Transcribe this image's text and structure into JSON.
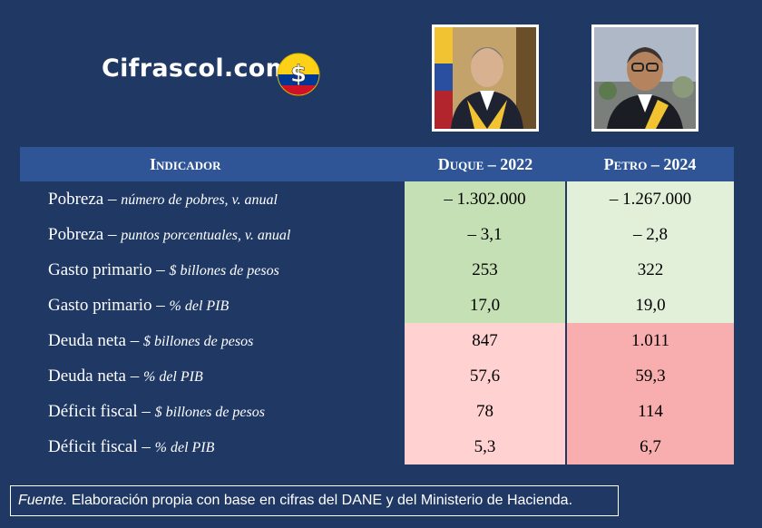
{
  "brand": {
    "name": "Cifrascol.com",
    "coin_symbol": "$",
    "flag_colors": [
      "#fcd116",
      "#003893",
      "#ce1126"
    ]
  },
  "photos": {
    "duque": "portrait-duque",
    "petro": "portrait-petro"
  },
  "table": {
    "headers": [
      "Indicador",
      "Duque – 2022",
      "Petro – 2024"
    ],
    "rows": [
      {
        "main": "Pobreza",
        "unit": "número de pobres, v. anual",
        "duque": "– 1.302.000",
        "petro": "– 1.267.000"
      },
      {
        "main": "Pobreza",
        "unit": "puntos porcentuales, v. anual",
        "duque": "– 3,1",
        "petro": "– 2,8"
      },
      {
        "main": "Gasto primario",
        "unit": "$ billones de pesos",
        "duque": "253",
        "petro": "322"
      },
      {
        "main": "Gasto primario",
        "unit": "% del PIB",
        "duque": "17,0",
        "petro": "19,0"
      },
      {
        "main": "Deuda neta",
        "unit": "$ billones de pesos",
        "duque": "847",
        "petro": "1.011"
      },
      {
        "main": "Deuda neta",
        "unit": "% del PIB",
        "duque": "57,6",
        "petro": "59,3"
      },
      {
        "main": "Déficit fiscal",
        "unit": "$ billones de pesos",
        "duque": "78",
        "petro": "114"
      },
      {
        "main": "Déficit fiscal",
        "unit": "% del PIB",
        "duque": "5,3",
        "petro": "6,7"
      }
    ],
    "colors": {
      "header": "#2f5597",
      "green_duque": "#c5e0b4",
      "green_petro": "#e2f0d9",
      "red_duque": "#ffd1d1",
      "red_petro": "#f8aeae"
    }
  },
  "source": {
    "label": "Fuente.",
    "text": " Elaboración propia con base en cifras del DANE y del Ministerio de Hacienda."
  }
}
